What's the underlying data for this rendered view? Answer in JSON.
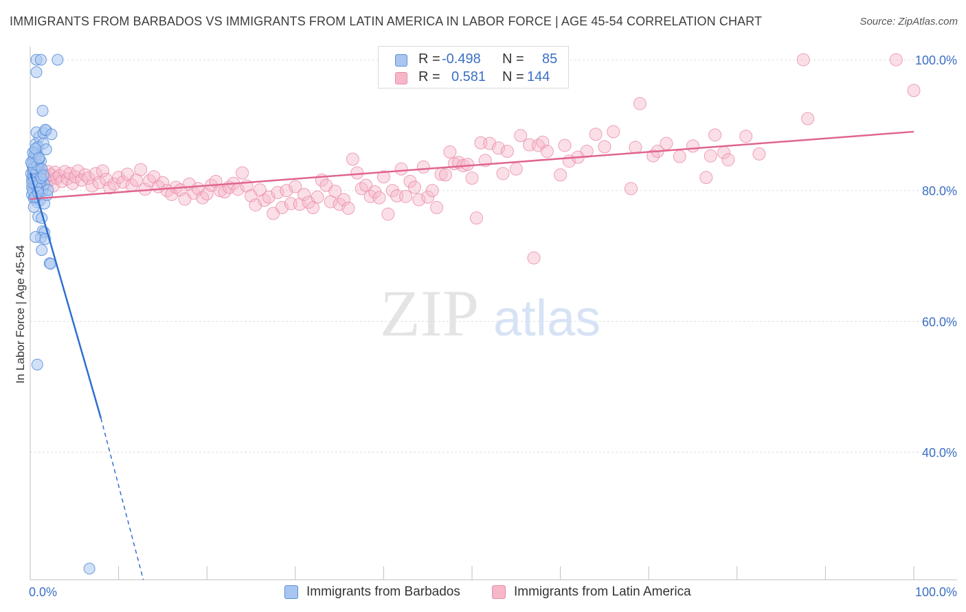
{
  "header": {
    "title": "IMMIGRANTS FROM BARBADOS VS IMMIGRANTS FROM LATIN AMERICA IN LABOR FORCE | AGE 45-54 CORRELATION CHART",
    "source": "Source: ZipAtlas.com"
  },
  "legend": {
    "r_label": "R =",
    "n_label": "N =",
    "series": [
      {
        "r": "-0.498",
        "n": "85"
      },
      {
        "r": "0.581",
        "n": "144"
      }
    ]
  },
  "bottom_legend": {
    "barbados": "Immigrants from Barbados",
    "latin": "Immigrants from Latin America"
  },
  "colors": {
    "blue_fill": "#a9c6f0",
    "blue_stroke": "#5b8fd9",
    "blue_line": "#2f6fcf",
    "pink_fill": "#f6b7c9",
    "pink_stroke": "#e98aa8",
    "pink_line": "#e0648f",
    "axis_label": "#3a6fc4",
    "grid": "#dddddd"
  },
  "chart_data": {
    "type": "scatter",
    "title": "IMMIGRANTS FROM BARBADOS VS IMMIGRANTS FROM LATIN AMERICA IN LABOR FORCE | AGE 45-54 CORRELATION CHART",
    "ylabel": "In Labor Force | Age 45-54",
    "xlabel": "",
    "xlim": [
      0,
      100
    ],
    "ylim": [
      20.5,
      102
    ],
    "x_tick_labels": [
      {
        "value": 0,
        "label": "0.0%"
      },
      {
        "value": 100,
        "label": "100.0%"
      }
    ],
    "y_tick_labels": [
      {
        "value": 100,
        "label": "100.0%"
      },
      {
        "value": 80,
        "label": "80.0%"
      },
      {
        "value": 60,
        "label": "60.0%"
      },
      {
        "value": 40,
        "label": "40.0%"
      }
    ],
    "y_gridlines": [
      100,
      80,
      60,
      40
    ],
    "x_minor_ticks": [
      10,
      20,
      30,
      40,
      50,
      60,
      70,
      80,
      90,
      100
    ],
    "watermark": {
      "zip": "ZIP",
      "atlas": "atlas"
    },
    "series": [
      {
        "name": "Immigrants from Barbados",
        "r": -0.498,
        "n": 85,
        "trend": {
          "x0": 0,
          "y0": 82.7,
          "x1": 8,
          "y1": 45.2,
          "dash_x1": 12.8,
          "dash_y1": 20.5
        },
        "points": [
          [
            0.1,
            82.6
          ],
          [
            0.2,
            81.8
          ],
          [
            0.3,
            83.1
          ],
          [
            0.2,
            80.5
          ],
          [
            0.4,
            82.0
          ],
          [
            0.5,
            84.1
          ],
          [
            0.3,
            83.6
          ],
          [
            0.6,
            82.4
          ],
          [
            0.4,
            81.2
          ],
          [
            0.7,
            83.0
          ],
          [
            0.5,
            80.8
          ],
          [
            0.8,
            82.1
          ],
          [
            0.6,
            79.6
          ],
          [
            0.9,
            81.5
          ],
          [
            0.3,
            84.6
          ],
          [
            0.4,
            85.2
          ],
          [
            0.7,
            84.4
          ],
          [
            0.5,
            86.0
          ],
          [
            0.8,
            85.6
          ],
          [
            0.6,
            87.1
          ],
          [
            1.0,
            83.5
          ],
          [
            1.2,
            82.7
          ],
          [
            1.1,
            80.9
          ],
          [
            1.3,
            81.8
          ],
          [
            1.4,
            79.9
          ],
          [
            1.5,
            80.4
          ],
          [
            1.6,
            81.0
          ],
          [
            1.2,
            84.5
          ],
          [
            0.9,
            86.7
          ],
          [
            1.0,
            88.2
          ],
          [
            0.7,
            88.9
          ],
          [
            1.5,
            88.8
          ],
          [
            1.8,
            89.2
          ],
          [
            1.7,
            89.3
          ],
          [
            2.4,
            88.6
          ],
          [
            1.5,
            87.2
          ],
          [
            1.8,
            86.3
          ],
          [
            1.4,
            92.2
          ],
          [
            0.7,
            100.0
          ],
          [
            1.2,
            100.0
          ],
          [
            3.1,
            100.0
          ],
          [
            0.7,
            98.1
          ],
          [
            0.2,
            79.4
          ],
          [
            0.4,
            78.8
          ],
          [
            0.6,
            79.2
          ],
          [
            0.8,
            78.2
          ],
          [
            1.1,
            78.5
          ],
          [
            1.6,
            78.0
          ],
          [
            1.9,
            79.3
          ],
          [
            2.0,
            80.1
          ],
          [
            0.4,
            77.5
          ],
          [
            0.9,
            76.0
          ],
          [
            1.3,
            75.8
          ],
          [
            1.4,
            73.8
          ],
          [
            1.6,
            73.6
          ],
          [
            1.2,
            72.8
          ],
          [
            0.6,
            72.9
          ],
          [
            1.7,
            72.6
          ],
          [
            1.3,
            70.9
          ],
          [
            2.2,
            68.9
          ],
          [
            2.3,
            68.8
          ],
          [
            0.8,
            53.4
          ],
          [
            6.7,
            22.2
          ],
          [
            0.3,
            82.3
          ],
          [
            0.5,
            81.6
          ],
          [
            0.7,
            82.9
          ],
          [
            0.9,
            80.2
          ],
          [
            1.1,
            81.3
          ],
          [
            0.2,
            84.0
          ],
          [
            0.4,
            83.4
          ],
          [
            0.6,
            85.5
          ],
          [
            0.8,
            83.9
          ],
          [
            1.0,
            84.8
          ],
          [
            1.3,
            83.3
          ],
          [
            0.3,
            80.0
          ],
          [
            0.5,
            79.0
          ],
          [
            0.7,
            80.7
          ],
          [
            0.9,
            79.7
          ],
          [
            1.2,
            81.9
          ],
          [
            1.5,
            82.3
          ],
          [
            0.1,
            84.3
          ],
          [
            0.3,
            85.8
          ],
          [
            0.6,
            86.4
          ],
          [
            1.0,
            85.0
          ],
          [
            0.2,
            81.2
          ]
        ]
      },
      {
        "name": "Immigrants from Latin America",
        "r": 0.581,
        "n": 144,
        "trend": {
          "x0": 0,
          "y0": 78.7,
          "x1": 100,
          "y1": 89.0
        },
        "points": [
          [
            0.4,
            82.0
          ],
          [
            0.6,
            81.4
          ],
          [
            0.8,
            82.6
          ],
          [
            1.0,
            80.9
          ],
          [
            1.2,
            82.2
          ],
          [
            1.4,
            81.7
          ],
          [
            1.6,
            82.5
          ],
          [
            1.8,
            81.0
          ],
          [
            2.0,
            82.9
          ],
          [
            2.2,
            81.6
          ],
          [
            2.4,
            82.4
          ],
          [
            2.6,
            80.7
          ],
          [
            2.8,
            82.8
          ],
          [
            3.0,
            81.9
          ],
          [
            3.3,
            82.3
          ],
          [
            3.6,
            81.4
          ],
          [
            3.9,
            82.9
          ],
          [
            4.2,
            81.8
          ],
          [
            4.5,
            82.6
          ],
          [
            4.8,
            81.1
          ],
          [
            5.1,
            82.1
          ],
          [
            5.4,
            83.0
          ],
          [
            5.8,
            81.6
          ],
          [
            6.2,
            82.4
          ],
          [
            6.6,
            81.9
          ],
          [
            7.0,
            80.7
          ],
          [
            7.4,
            82.6
          ],
          [
            7.8,
            81.2
          ],
          [
            8.2,
            83.0
          ],
          [
            8.6,
            81.7
          ],
          [
            9.0,
            80.4
          ],
          [
            9.5,
            81.0
          ],
          [
            10.0,
            82.0
          ],
          [
            10.5,
            81.3
          ],
          [
            11.0,
            82.5
          ],
          [
            11.5,
            80.8
          ],
          [
            12.0,
            81.6
          ],
          [
            12.5,
            83.2
          ],
          [
            13.0,
            80.2
          ],
          [
            13.5,
            81.5
          ],
          [
            14.0,
            82.1
          ],
          [
            14.5,
            80.6
          ],
          [
            15.0,
            81.2
          ],
          [
            15.5,
            80.0
          ],
          [
            16.0,
            79.4
          ],
          [
            16.5,
            80.5
          ],
          [
            17.0,
            80.1
          ],
          [
            17.5,
            78.7
          ],
          [
            18.0,
            81.0
          ],
          [
            18.5,
            79.6
          ],
          [
            19.0,
            80.3
          ],
          [
            19.5,
            78.9
          ],
          [
            20.0,
            79.5
          ],
          [
            20.5,
            80.8
          ],
          [
            21.0,
            81.4
          ],
          [
            21.5,
            80.0
          ],
          [
            22.0,
            79.8
          ],
          [
            22.5,
            80.5
          ],
          [
            23.0,
            81.1
          ],
          [
            23.5,
            80.2
          ],
          [
            24.0,
            82.7
          ],
          [
            24.5,
            80.7
          ],
          [
            25.0,
            79.2
          ],
          [
            25.5,
            77.8
          ],
          [
            26.0,
            80.1
          ],
          [
            26.5,
            78.5
          ],
          [
            27.0,
            79.0
          ],
          [
            27.5,
            76.5
          ],
          [
            28.0,
            79.7
          ],
          [
            28.5,
            77.4
          ],
          [
            29.0,
            80.0
          ],
          [
            29.5,
            78.0
          ],
          [
            30.0,
            80.6
          ],
          [
            30.5,
            77.9
          ],
          [
            31.0,
            79.4
          ],
          [
            31.5,
            78.2
          ],
          [
            32.0,
            77.4
          ],
          [
            32.5,
            79.0
          ],
          [
            33.0,
            81.6
          ],
          [
            33.5,
            80.8
          ],
          [
            34.0,
            78.3
          ],
          [
            34.5,
            79.9
          ],
          [
            35.0,
            77.9
          ],
          [
            35.5,
            78.6
          ],
          [
            36.0,
            77.3
          ],
          [
            36.5,
            84.8
          ],
          [
            37.0,
            82.7
          ],
          [
            37.5,
            80.3
          ],
          [
            38.0,
            80.8
          ],
          [
            38.5,
            79.1
          ],
          [
            39.0,
            79.8
          ],
          [
            39.5,
            78.9
          ],
          [
            40.0,
            82.1
          ],
          [
            40.5,
            76.4
          ],
          [
            41.0,
            80.0
          ],
          [
            41.5,
            79.2
          ],
          [
            42.0,
            83.3
          ],
          [
            42.5,
            79.1
          ],
          [
            43.0,
            81.4
          ],
          [
            43.5,
            80.5
          ],
          [
            44.0,
            78.6
          ],
          [
            44.5,
            83.6
          ],
          [
            45.0,
            79.0
          ],
          [
            45.5,
            80.0
          ],
          [
            46.0,
            77.4
          ],
          [
            46.5,
            82.5
          ],
          [
            47.0,
            82.4
          ],
          [
            47.5,
            85.9
          ],
          [
            48.0,
            84.1
          ],
          [
            48.5,
            84.3
          ],
          [
            49.0,
            83.8
          ],
          [
            49.5,
            84.0
          ],
          [
            50.0,
            81.9
          ],
          [
            50.5,
            75.8
          ],
          [
            51.0,
            87.3
          ],
          [
            51.5,
            84.6
          ],
          [
            52.0,
            87.2
          ],
          [
            53.0,
            86.5
          ],
          [
            53.5,
            82.6
          ],
          [
            54.0,
            86.0
          ],
          [
            55.0,
            83.3
          ],
          [
            55.5,
            88.4
          ],
          [
            56.5,
            87.0
          ],
          [
            57.0,
            69.7
          ],
          [
            57.5,
            86.9
          ],
          [
            58.0,
            87.4
          ],
          [
            58.5,
            86.0
          ],
          [
            60.0,
            82.4
          ],
          [
            60.5,
            86.9
          ],
          [
            61.0,
            84.5
          ],
          [
            62.0,
            85.1
          ],
          [
            63.0,
            86.0
          ],
          [
            64.0,
            88.6
          ],
          [
            65.0,
            86.7
          ],
          [
            68.0,
            80.3
          ],
          [
            68.5,
            86.6
          ],
          [
            69.0,
            93.3
          ],
          [
            70.5,
            85.3
          ],
          [
            71.0,
            86.0
          ],
          [
            72.0,
            87.2
          ],
          [
            73.5,
            85.2
          ],
          [
            75.0,
            86.8
          ],
          [
            76.5,
            82.0
          ],
          [
            77.0,
            85.3
          ],
          [
            77.5,
            88.5
          ],
          [
            78.5,
            85.8
          ],
          [
            81.0,
            88.3
          ],
          [
            82.5,
            85.6
          ],
          [
            87.5,
            100.0
          ],
          [
            98.0,
            100.0
          ],
          [
            100.0,
            95.3
          ],
          [
            66.0,
            89.0
          ],
          [
            79.0,
            84.7
          ],
          [
            88.0,
            91.0
          ]
        ]
      }
    ]
  }
}
